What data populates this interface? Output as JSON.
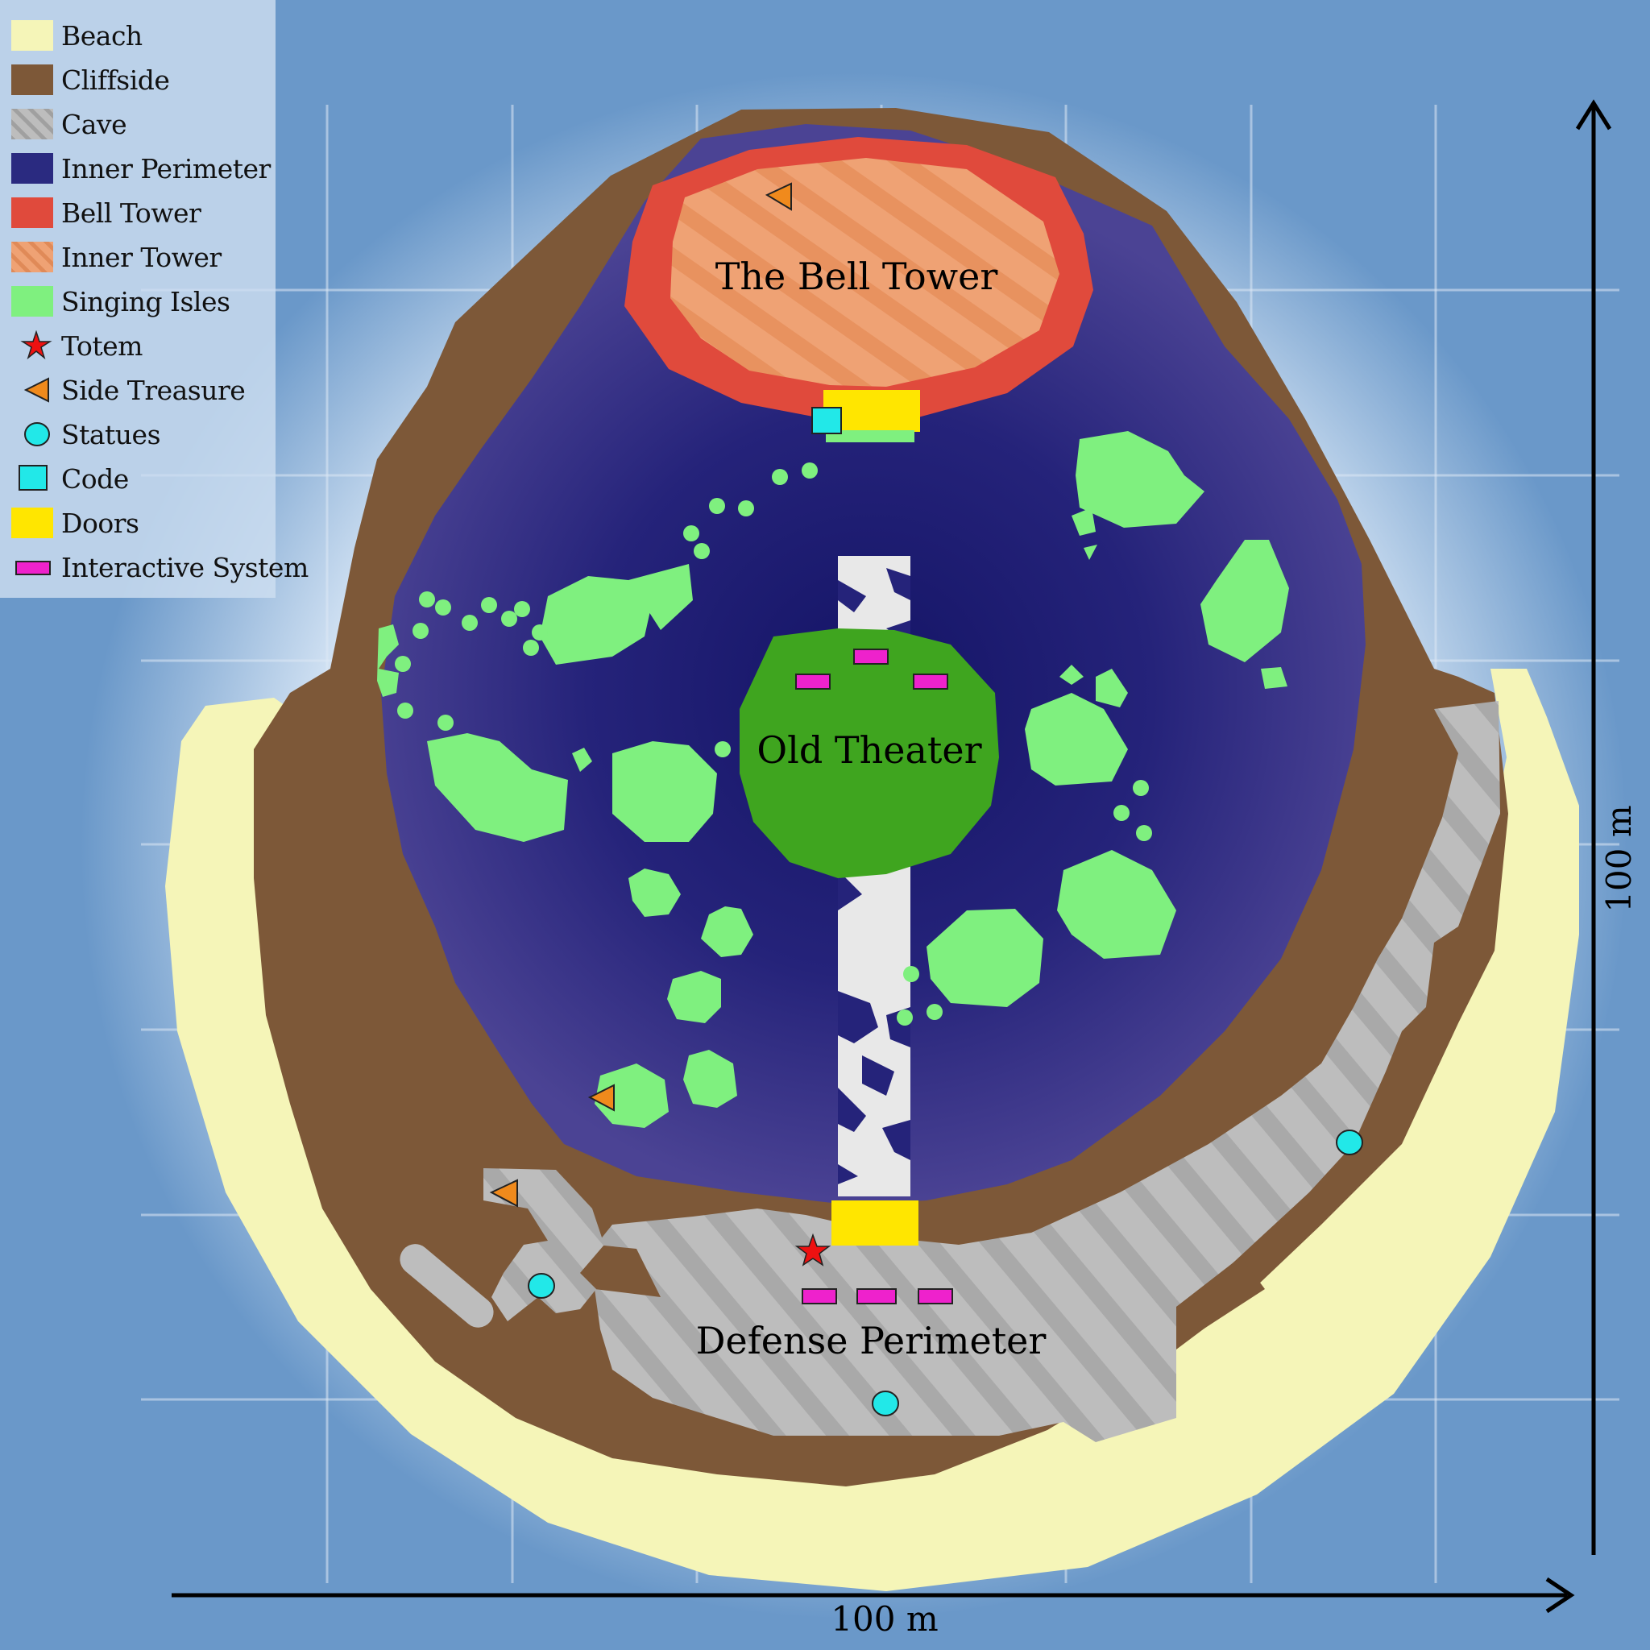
{
  "legend": {
    "items": [
      {
        "label": "Beach",
        "icon": "beach-swatch",
        "color": "#f5f5b8"
      },
      {
        "label": "Cliffside",
        "icon": "cliffside-swatch",
        "color": "#7d5838"
      },
      {
        "label": "Cave",
        "icon": "cave-swatch",
        "color": "#bdbdbd"
      },
      {
        "label": "Inner Perimeter",
        "icon": "inner-perimeter-swatch",
        "color": "#2a2a80"
      },
      {
        "label": "Bell Tower",
        "icon": "bell-tower-swatch",
        "color": "#e04a3c"
      },
      {
        "label": "Inner Tower",
        "icon": "inner-tower-swatch",
        "color": "#f0a070"
      },
      {
        "label": "Singing Isles",
        "icon": "singing-isles-swatch",
        "color": "#7ff07f"
      },
      {
        "label": "Totem",
        "icon": "star-icon",
        "color": "#ee1111"
      },
      {
        "label": "Side Treasure",
        "icon": "triangle-icon",
        "color": "#f08a1c"
      },
      {
        "label": "Statues",
        "icon": "circle-icon",
        "color": "#22e8e8"
      },
      {
        "label": "Code",
        "icon": "square-icon",
        "color": "#22e8e8"
      },
      {
        "label": "Doors",
        "icon": "doors-swatch",
        "color": "#ffe600"
      },
      {
        "label": "Interactive System",
        "icon": "rectangle-icon",
        "color": "#ee22cc"
      }
    ]
  },
  "regions": {
    "bell_tower": "The Bell Tower",
    "old_theater": "Old Theater",
    "defense_perimeter": "Defense Perimeter"
  },
  "scale": {
    "horizontal": "100 m",
    "vertical": "100 m"
  }
}
